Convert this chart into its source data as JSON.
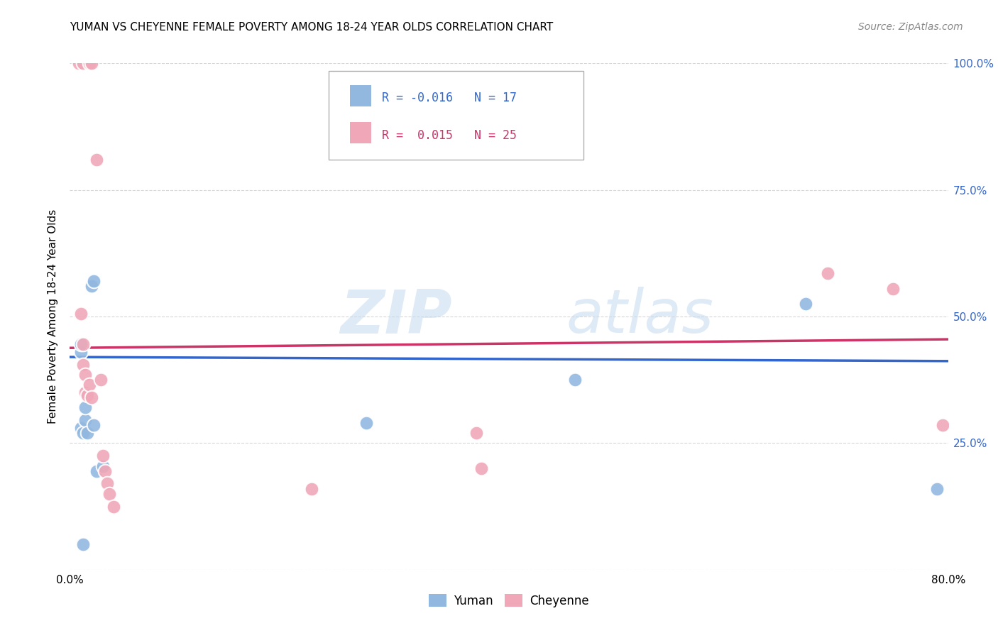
{
  "title": "YUMAN VS CHEYENNE FEMALE POVERTY AMONG 18-24 YEAR OLDS CORRELATION CHART",
  "source": "Source: ZipAtlas.com",
  "ylabel": "Female Poverty Among 18-24 Year Olds",
  "xlim": [
    0.0,
    0.8
  ],
  "ylim": [
    0.0,
    1.0
  ],
  "xticks": [
    0.0,
    0.1,
    0.2,
    0.3,
    0.4,
    0.5,
    0.6,
    0.7,
    0.8
  ],
  "xticklabels": [
    "0.0%",
    "",
    "",
    "",
    "",
    "",
    "",
    "",
    "80.0%"
  ],
  "yticks_right": [
    0.0,
    0.25,
    0.5,
    0.75,
    1.0
  ],
  "yticklabels_right": [
    "",
    "25.0%",
    "50.0%",
    "75.0%",
    "100.0%"
  ],
  "grid_color": "#cccccc",
  "watermark_zip": "ZIP",
  "watermark_atlas": "atlas",
  "legend_R_blue": "-0.016",
  "legend_N_blue": "17",
  "legend_R_pink": "0.015",
  "legend_N_pink": "25",
  "blue_color": "#92b8e0",
  "pink_color": "#f0a8b8",
  "blue_line_color": "#3366cc",
  "pink_line_color": "#cc3366",
  "yuman_points": [
    [
      0.01,
      0.43
    ],
    [
      0.01,
      0.445
    ],
    [
      0.01,
      0.28
    ],
    [
      0.012,
      0.27
    ],
    [
      0.014,
      0.295
    ],
    [
      0.014,
      0.32
    ],
    [
      0.016,
      0.27
    ],
    [
      0.012,
      0.05
    ],
    [
      0.02,
      0.56
    ],
    [
      0.022,
      0.57
    ],
    [
      0.022,
      0.285
    ],
    [
      0.024,
      0.195
    ],
    [
      0.03,
      0.205
    ],
    [
      0.27,
      0.29
    ],
    [
      0.46,
      0.375
    ],
    [
      0.67,
      0.525
    ],
    [
      0.79,
      0.16
    ]
  ],
  "cheyenne_points": [
    [
      0.008,
      1.0
    ],
    [
      0.012,
      1.0
    ],
    [
      0.018,
      1.0
    ],
    [
      0.02,
      1.0
    ],
    [
      0.024,
      0.81
    ],
    [
      0.01,
      0.505
    ],
    [
      0.012,
      0.445
    ],
    [
      0.012,
      0.405
    ],
    [
      0.014,
      0.385
    ],
    [
      0.014,
      0.35
    ],
    [
      0.016,
      0.345
    ],
    [
      0.018,
      0.365
    ],
    [
      0.02,
      0.34
    ],
    [
      0.028,
      0.375
    ],
    [
      0.03,
      0.225
    ],
    [
      0.032,
      0.195
    ],
    [
      0.034,
      0.17
    ],
    [
      0.036,
      0.15
    ],
    [
      0.04,
      0.125
    ],
    [
      0.22,
      0.16
    ],
    [
      0.37,
      0.27
    ],
    [
      0.375,
      0.2
    ],
    [
      0.69,
      0.585
    ],
    [
      0.75,
      0.555
    ],
    [
      0.795,
      0.285
    ]
  ],
  "blue_trendline": [
    [
      0.0,
      0.42
    ],
    [
      0.8,
      0.412
    ]
  ],
  "pink_trendline": [
    [
      0.0,
      0.438
    ],
    [
      0.8,
      0.455
    ]
  ]
}
